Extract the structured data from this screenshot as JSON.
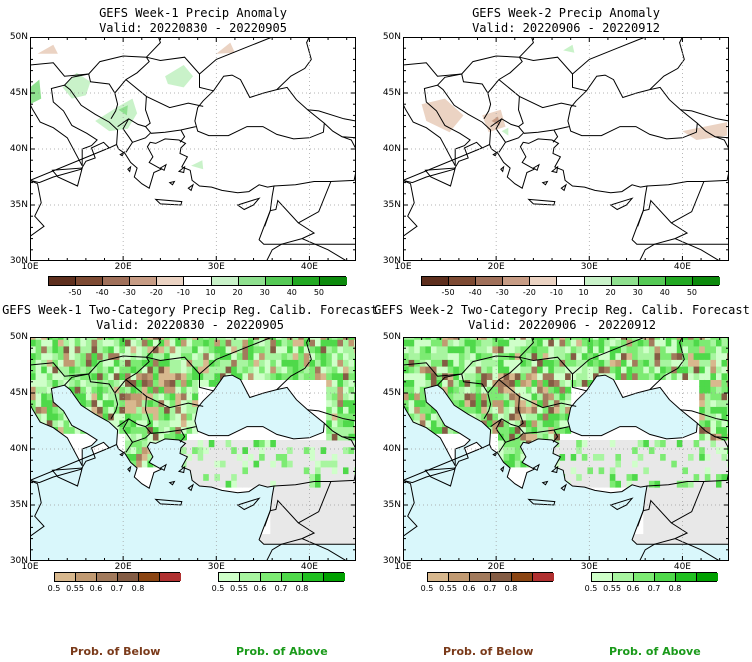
{
  "colors": {
    "ocean": "#d9f7fb",
    "land_dry": "#e8e8e8",
    "coast": "#000000",
    "below_label": "#7a3a1a",
    "above_label": "#1a9a1a"
  },
  "anomaly_colorbar": {
    "labels": [
      "-50",
      "-40",
      "-30",
      "-20",
      "-10",
      "10",
      "20",
      "30",
      "40",
      "50"
    ],
    "colors": [
      "#5e2f1e",
      "#7d4a33",
      "#a0705a",
      "#c79c85",
      "#ebd3c3",
      "#ffffff",
      "#c9f2c9",
      "#8fe08f",
      "#55c955",
      "#22a822",
      "#0c8a0c"
    ]
  },
  "prob_below_colorbar": {
    "labels": [
      "0.5",
      "0.55",
      "0.6",
      "0.7",
      "0.8"
    ],
    "colors": [
      "#d8b88e",
      "#c19a72",
      "#a27a5c",
      "#845c44",
      "#8b4513",
      "#b03030"
    ]
  },
  "prob_above_colorbar": {
    "labels": [
      "0.5",
      "0.55",
      "0.6",
      "0.7",
      "0.8"
    ],
    "colors": [
      "#cfffc9",
      "#a8f5a0",
      "#7deb73",
      "#4fd94a",
      "#20c020",
      "#00a000"
    ]
  },
  "lat_labels": [
    "50N",
    "45N",
    "40N",
    "35N",
    "30N"
  ],
  "lon_labels": [
    "10E",
    "20E",
    "30E",
    "40E"
  ],
  "panels": [
    {
      "id": "p1",
      "kind": "anomaly",
      "title": "GEFS Week-1 Precip Anomaly",
      "valid": "Valid: 20220830 - 20220905"
    },
    {
      "id": "p2",
      "kind": "anomaly",
      "title": "GEFS Week-2 Precip Anomaly",
      "valid": "Valid: 20220906 - 20220912"
    },
    {
      "id": "p3",
      "kind": "prob",
      "title": "GEFS Week-1 Two-Category Precip Reg. Calib. Forecast",
      "valid": "Valid: 20220830 - 20220905"
    },
    {
      "id": "p4",
      "kind": "prob",
      "title": "GEFS Week-2 Two-Category Precip Reg. Calib. Forecast",
      "valid": "Valid: 20220906 - 20220912"
    }
  ],
  "legend": {
    "below": "Prob. of Below",
    "above": "Prob. of Above"
  }
}
